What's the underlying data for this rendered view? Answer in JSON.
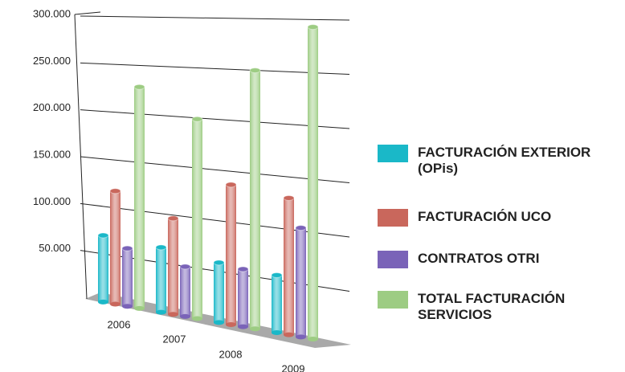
{
  "chart_data": {
    "type": "bar3d",
    "categories": [
      "2006",
      "2007",
      "2008",
      "2009"
    ],
    "series": [
      {
        "name": "FACTURACIÓN EXTERIOR (OPis)",
        "color": "#1ab8c8",
        "values": [
          70000,
          66000,
          59000,
          55000
        ]
      },
      {
        "name": "FACTURACIÓN UCO",
        "color": "#c9675c",
        "values": [
          118000,
          97000,
          137000,
          130000
        ]
      },
      {
        "name": "CONTRATOS OTRI",
        "color": "#7a63b8",
        "values": [
          60000,
          50000,
          56000,
          103000
        ]
      },
      {
        "name": "TOTAL FACTURACIÓN SERVICIOS",
        "color": "#9dcc83",
        "values": [
          228000,
          199000,
          250000,
          293000
        ]
      }
    ],
    "ylim": [
      0,
      300000
    ],
    "yticks": [
      {
        "value": 50000,
        "label": "50.000"
      },
      {
        "value": 100000,
        "label": "100.000"
      },
      {
        "value": 150000,
        "label": "150.000"
      },
      {
        "value": 200000,
        "label": "200.000"
      },
      {
        "value": 250000,
        "label": "250.000"
      },
      {
        "value": 300000,
        "label": "300.000"
      }
    ],
    "grid": true,
    "legend": "right"
  }
}
